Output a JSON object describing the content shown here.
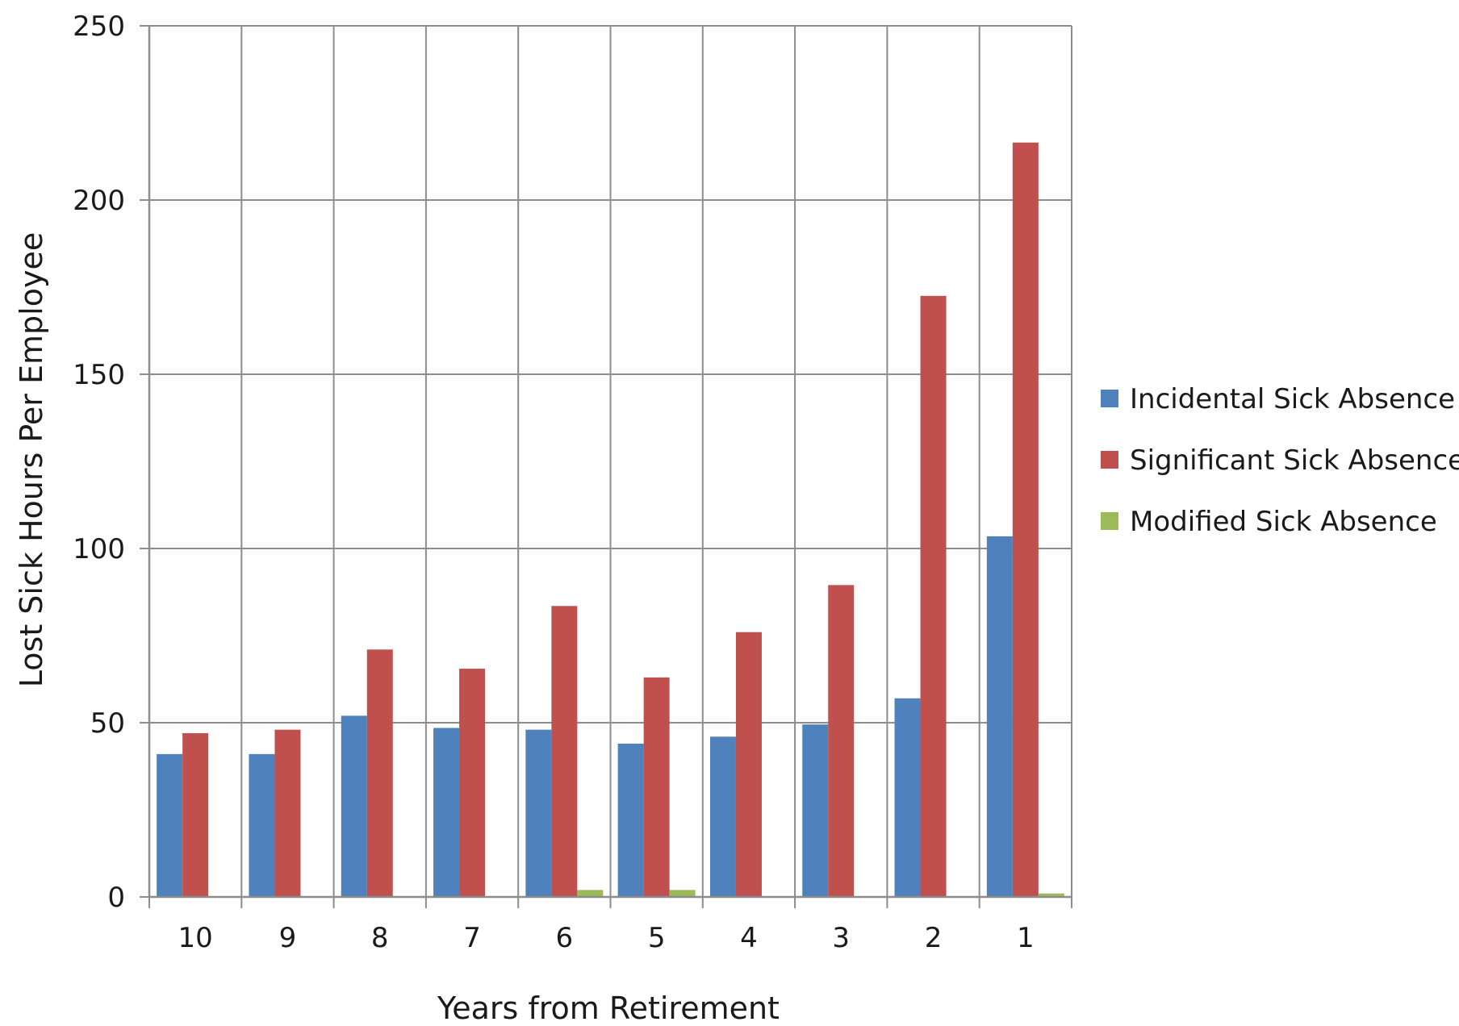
{
  "chart_data": {
    "type": "bar",
    "title": "",
    "xlabel": "Years from Retirement",
    "ylabel": "Lost Sick Hours Per Employee",
    "categories": [
      "10",
      "9",
      "8",
      "7",
      "6",
      "5",
      "4",
      "3",
      "2",
      "1"
    ],
    "series": [
      {
        "name": "Incidental Sick Absence",
        "color": "#4f81bd",
        "values": [
          41,
          41,
          52,
          48.5,
          48,
          44,
          46,
          49.5,
          57,
          103.5
        ]
      },
      {
        "name": "Significant Sick Absence",
        "color": "#c0504d",
        "values": [
          47,
          48,
          71,
          65.5,
          83.5,
          63,
          76,
          89.5,
          172.5,
          216.5
        ]
      },
      {
        "name": "Modified Sick Absence",
        "color": "#9bbb59",
        "values": [
          0,
          0,
          0,
          0,
          2,
          2,
          0,
          0,
          0,
          1
        ]
      }
    ],
    "ylim": [
      0,
      250
    ],
    "yticks": [
      0,
      50,
      100,
      150,
      200,
      250
    ],
    "grid": true,
    "legend_position": "right"
  }
}
